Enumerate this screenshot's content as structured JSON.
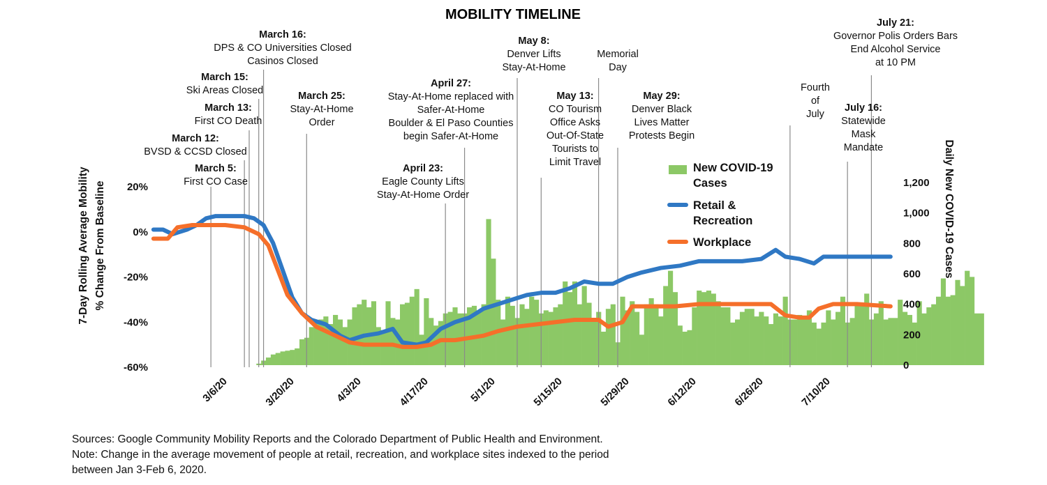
{
  "chart_data": {
    "type": "line",
    "title": "MOBILITY TIMELINE",
    "ylabel_left": [
      "7-Day Rolling Average Mobility",
      "% Change From Baseline"
    ],
    "ylabel_right": "Daily New COVID-19 Cases",
    "ylim_left": [
      -60,
      20
    ],
    "ylim_right": [
      0,
      1200
    ],
    "yticks_left": [
      "20%",
      "0%",
      "-20%",
      "-40%",
      "-60%"
    ],
    "yticks_right": [
      "1,200",
      "1,000",
      "800",
      "600",
      "400",
      "200",
      "0"
    ],
    "xticks": [
      {
        "date": "2020-03-06",
        "label": "3/6/20"
      },
      {
        "date": "2020-03-20",
        "label": "3/20/20"
      },
      {
        "date": "2020-04-03",
        "label": "4/3/20"
      },
      {
        "date": "2020-04-17",
        "label": "4/17/20"
      },
      {
        "date": "2020-05-01",
        "label": "5/1/20"
      },
      {
        "date": "2020-05-15",
        "label": "5/15/20"
      },
      {
        "date": "2020-05-29",
        "label": "5/29/20"
      },
      {
        "date": "2020-06-12",
        "label": "6/12/20"
      },
      {
        "date": "2020-06-26",
        "label": "6/26/20"
      },
      {
        "date": "2020-07-10",
        "label": "7/10/20"
      }
    ],
    "x_range": [
      "2020-02-22",
      "2020-07-25"
    ],
    "legend_position": "center-right",
    "series": [
      {
        "name": "New COVID-19 Cases",
        "type": "bar",
        "axis": "right",
        "color": "#8cc866",
        "start_date": "2020-03-15",
        "values": [
          10,
          30,
          50,
          70,
          80,
          90,
          95,
          100,
          110,
          170,
          180,
          250,
          280,
          300,
          320,
          270,
          330,
          300,
          250,
          300,
          380,
          400,
          430,
          380,
          420,
          250,
          230,
          420,
          310,
          300,
          400,
          410,
          450,
          500,
          200,
          440,
          310,
          260,
          290,
          340,
          350,
          380,
          340,
          340,
          380,
          390,
          360,
          400,
          960,
          700,
          430,
          300,
          450,
          390,
          310,
          400,
          370,
          450,
          430,
          340,
          360,
          350,
          380,
          400,
          550,
          480,
          550,
          400,
          520,
          410,
          300,
          350,
          220,
          370,
          400,
          150,
          450,
          360,
          420,
          350,
          200,
          400,
          440,
          400,
          320,
          520,
          620,
          480,
          260,
          220,
          230,
          380,
          490,
          480,
          490,
          470,
          420,
          380,
          380,
          280,
          300,
          350,
          370,
          370,
          320,
          350,
          320,
          270,
          340,
          320,
          450,
          300,
          300,
          330,
          300,
          360,
          280,
          240,
          280,
          360,
          300,
          350,
          450,
          280,
          310,
          400,
          400,
          470,
          300,
          340,
          420,
          300,
          310,
          310,
          430,
          350,
          330,
          280,
          420,
          340,
          380,
          400,
          450,
          570,
          450,
          460,
          560,
          520,
          620,
          580,
          340,
          340
        ],
        "bar_color": "#8cc866"
      },
      {
        "name": "Retail & Recreation",
        "type": "line",
        "axis": "left",
        "color": "#2f78c4",
        "points": [
          [
            "2020-02-22",
            1
          ],
          [
            "2020-02-24",
            1
          ],
          [
            "2020-02-26",
            -1
          ],
          [
            "2020-02-29",
            1
          ],
          [
            "2020-03-02",
            3
          ],
          [
            "2020-03-04",
            6
          ],
          [
            "2020-03-06",
            7
          ],
          [
            "2020-03-08",
            7
          ],
          [
            "2020-03-10",
            7
          ],
          [
            "2020-03-12",
            7
          ],
          [
            "2020-03-14",
            6
          ],
          [
            "2020-03-16",
            3
          ],
          [
            "2020-03-18",
            -5
          ],
          [
            "2020-03-20",
            -17
          ],
          [
            "2020-03-22",
            -29
          ],
          [
            "2020-03-24",
            -36
          ],
          [
            "2020-03-26",
            -39
          ],
          [
            "2020-03-29",
            -41
          ],
          [
            "2020-04-01",
            -46
          ],
          [
            "2020-04-03",
            -48
          ],
          [
            "2020-04-06",
            -46
          ],
          [
            "2020-04-09",
            -45
          ],
          [
            "2020-04-12",
            -43
          ],
          [
            "2020-04-14",
            -49
          ],
          [
            "2020-04-17",
            -50
          ],
          [
            "2020-04-19",
            -49
          ],
          [
            "2020-04-22",
            -43
          ],
          [
            "2020-04-25",
            -40
          ],
          [
            "2020-04-28",
            -38
          ],
          [
            "2020-05-01",
            -34
          ],
          [
            "2020-05-04",
            -32
          ],
          [
            "2020-05-07",
            -30
          ],
          [
            "2020-05-10",
            -28
          ],
          [
            "2020-05-13",
            -27
          ],
          [
            "2020-05-16",
            -27
          ],
          [
            "2020-05-19",
            -25
          ],
          [
            "2020-05-22",
            -22
          ],
          [
            "2020-05-25",
            -23
          ],
          [
            "2020-05-28",
            -23
          ],
          [
            "2020-05-31",
            -20
          ],
          [
            "2020-06-03",
            -18
          ],
          [
            "2020-06-07",
            -16
          ],
          [
            "2020-06-11",
            -15
          ],
          [
            "2020-06-15",
            -13
          ],
          [
            "2020-06-19",
            -13
          ],
          [
            "2020-06-24",
            -13
          ],
          [
            "2020-06-28",
            -12
          ],
          [
            "2020-07-01",
            -8
          ],
          [
            "2020-07-03",
            -11
          ],
          [
            "2020-07-06",
            -12
          ],
          [
            "2020-07-09",
            -14
          ],
          [
            "2020-07-11",
            -11
          ],
          [
            "2020-07-14",
            -11
          ],
          [
            "2020-07-18",
            -11
          ],
          [
            "2020-07-25",
            -11
          ]
        ]
      },
      {
        "name": "Workplace",
        "type": "line",
        "axis": "left",
        "color": "#f56f2a",
        "points": [
          [
            "2020-02-22",
            -3
          ],
          [
            "2020-02-25",
            -3
          ],
          [
            "2020-02-27",
            2
          ],
          [
            "2020-03-01",
            3
          ],
          [
            "2020-03-04",
            3
          ],
          [
            "2020-03-08",
            3
          ],
          [
            "2020-03-12",
            2
          ],
          [
            "2020-03-15",
            -1
          ],
          [
            "2020-03-17",
            -6
          ],
          [
            "2020-03-19",
            -17
          ],
          [
            "2020-03-21",
            -28
          ],
          [
            "2020-03-24",
            -36
          ],
          [
            "2020-03-27",
            -42
          ],
          [
            "2020-03-30",
            -45
          ],
          [
            "2020-04-03",
            -49
          ],
          [
            "2020-04-06",
            -50
          ],
          [
            "2020-04-09",
            -50
          ],
          [
            "2020-04-12",
            -50
          ],
          [
            "2020-04-14",
            -51
          ],
          [
            "2020-04-17",
            -51
          ],
          [
            "2020-04-20",
            -50
          ],
          [
            "2020-04-22",
            -48
          ],
          [
            "2020-04-25",
            -48
          ],
          [
            "2020-04-28",
            -47
          ],
          [
            "2020-05-01",
            -46
          ],
          [
            "2020-05-04",
            -44
          ],
          [
            "2020-05-08",
            -42
          ],
          [
            "2020-05-12",
            -41
          ],
          [
            "2020-05-16",
            -40
          ],
          [
            "2020-05-20",
            -39
          ],
          [
            "2020-05-25",
            -39
          ],
          [
            "2020-05-27",
            -42
          ],
          [
            "2020-05-30",
            -40
          ],
          [
            "2020-06-01",
            -33
          ],
          [
            "2020-06-05",
            -33
          ],
          [
            "2020-06-10",
            -33
          ],
          [
            "2020-06-15",
            -32
          ],
          [
            "2020-06-20",
            -32
          ],
          [
            "2020-06-25",
            -32
          ],
          [
            "2020-06-30",
            -32
          ],
          [
            "2020-07-03",
            -37
          ],
          [
            "2020-07-06",
            -38
          ],
          [
            "2020-07-08",
            -38
          ],
          [
            "2020-07-10",
            -34
          ],
          [
            "2020-07-13",
            -32
          ],
          [
            "2020-07-18",
            -32
          ],
          [
            "2020-07-25",
            -33
          ]
        ]
      }
    ],
    "events": [
      {
        "date": "2020-03-05",
        "bold": "March 5:",
        "lines": [
          "First CO Case"
        ]
      },
      {
        "date": "2020-03-12",
        "bold": "March 12:",
        "lines": [
          "BVSD & CCSD Closed"
        ]
      },
      {
        "date": "2020-03-13",
        "bold": "March 13:",
        "lines": [
          "First CO Death"
        ]
      },
      {
        "date": "2020-03-15",
        "bold": "March 15:",
        "lines": [
          "Ski Areas Closed"
        ]
      },
      {
        "date": "2020-03-16",
        "bold": "March 16:",
        "lines": [
          "DPS & CO Universities Closed",
          "Casinos Closed"
        ]
      },
      {
        "date": "2020-03-25",
        "bold": "March 25:",
        "lines": [
          "Stay-At-Home",
          "Order"
        ]
      },
      {
        "date": "2020-04-23",
        "bold": "April 23:",
        "lines": [
          "Eagle County Lifts",
          "Stay-At-Home Order"
        ]
      },
      {
        "date": "2020-04-27",
        "bold": "April 27:",
        "lines": [
          "Stay-At-Home replaced with",
          "Safer-At-Home",
          "Boulder & El Paso Counties",
          "begin Safer-At-Home"
        ]
      },
      {
        "date": "2020-05-08",
        "bold": "May 8:",
        "lines": [
          "Denver Lifts",
          "Stay-At-Home"
        ]
      },
      {
        "date": "2020-05-13",
        "bold": "May 13:",
        "lines": [
          "CO Tourism",
          "Office Asks",
          "Out-Of-State",
          "Tourists to",
          "Limit Travel"
        ]
      },
      {
        "date": "2020-05-25",
        "bold": "",
        "lines": [
          "Memorial",
          "Day"
        ]
      },
      {
        "date": "2020-05-29",
        "bold": "May 29:",
        "lines": [
          "Denver Black",
          "Lives Matter",
          "Protests Begin"
        ]
      },
      {
        "date": "2020-07-04",
        "bold": "",
        "lines": [
          "Fourth",
          "of",
          "July"
        ]
      },
      {
        "date": "2020-07-16",
        "bold": "July 16:",
        "lines": [
          "Statewide",
          "Mask",
          "Mandate"
        ]
      },
      {
        "date": "2020-07-21",
        "bold": "July 21:",
        "lines": [
          "Governor Polis Orders Bars",
          "End Alcohol Service",
          "at 10 PM"
        ]
      }
    ]
  },
  "legend": {
    "cases_line1": "New COVID-19",
    "cases_line2": "Cases",
    "retail_line1": "Retail &",
    "retail_line2": "Recreation",
    "workplace": "Workplace"
  },
  "footer": {
    "sources": "Sources: Google Community Mobility Reports and the Colorado Department of Public Health and Environment.",
    "note_line1": "Note: Change in the average movement of people at retail, recreation, and workplace sites indexed to the period",
    "note_line2": "between Jan 3-Feb 6, 2020."
  }
}
